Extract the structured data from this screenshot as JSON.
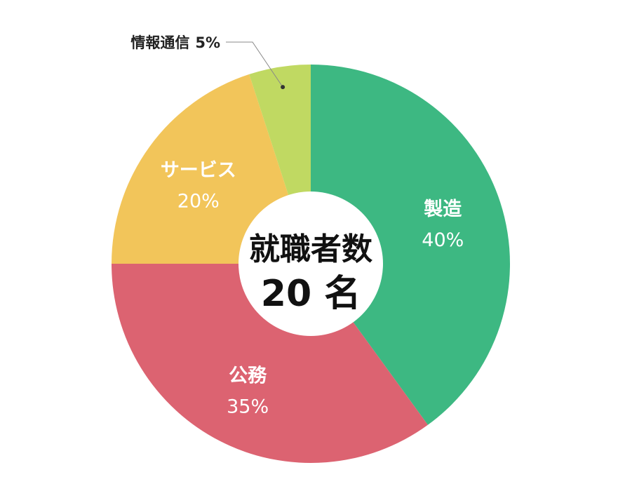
{
  "chart_data": {
    "type": "pie",
    "center": {
      "title": "就職者数",
      "value": "20 名"
    },
    "slices": [
      {
        "label": "製造",
        "value_text": "40%",
        "value": 40,
        "color": "#3db882",
        "label_position": "inside"
      },
      {
        "label": "公務",
        "value_text": "35%",
        "value": 35,
        "color": "#dc6371",
        "label_position": "inside"
      },
      {
        "label": "サービス",
        "value_text": "20%",
        "value": 20,
        "color": "#f2c55a",
        "label_position": "inside"
      },
      {
        "label": "情報通信",
        "value_text": "5%",
        "value": 5,
        "color": "#c0d962",
        "label_position": "outside"
      }
    ]
  }
}
